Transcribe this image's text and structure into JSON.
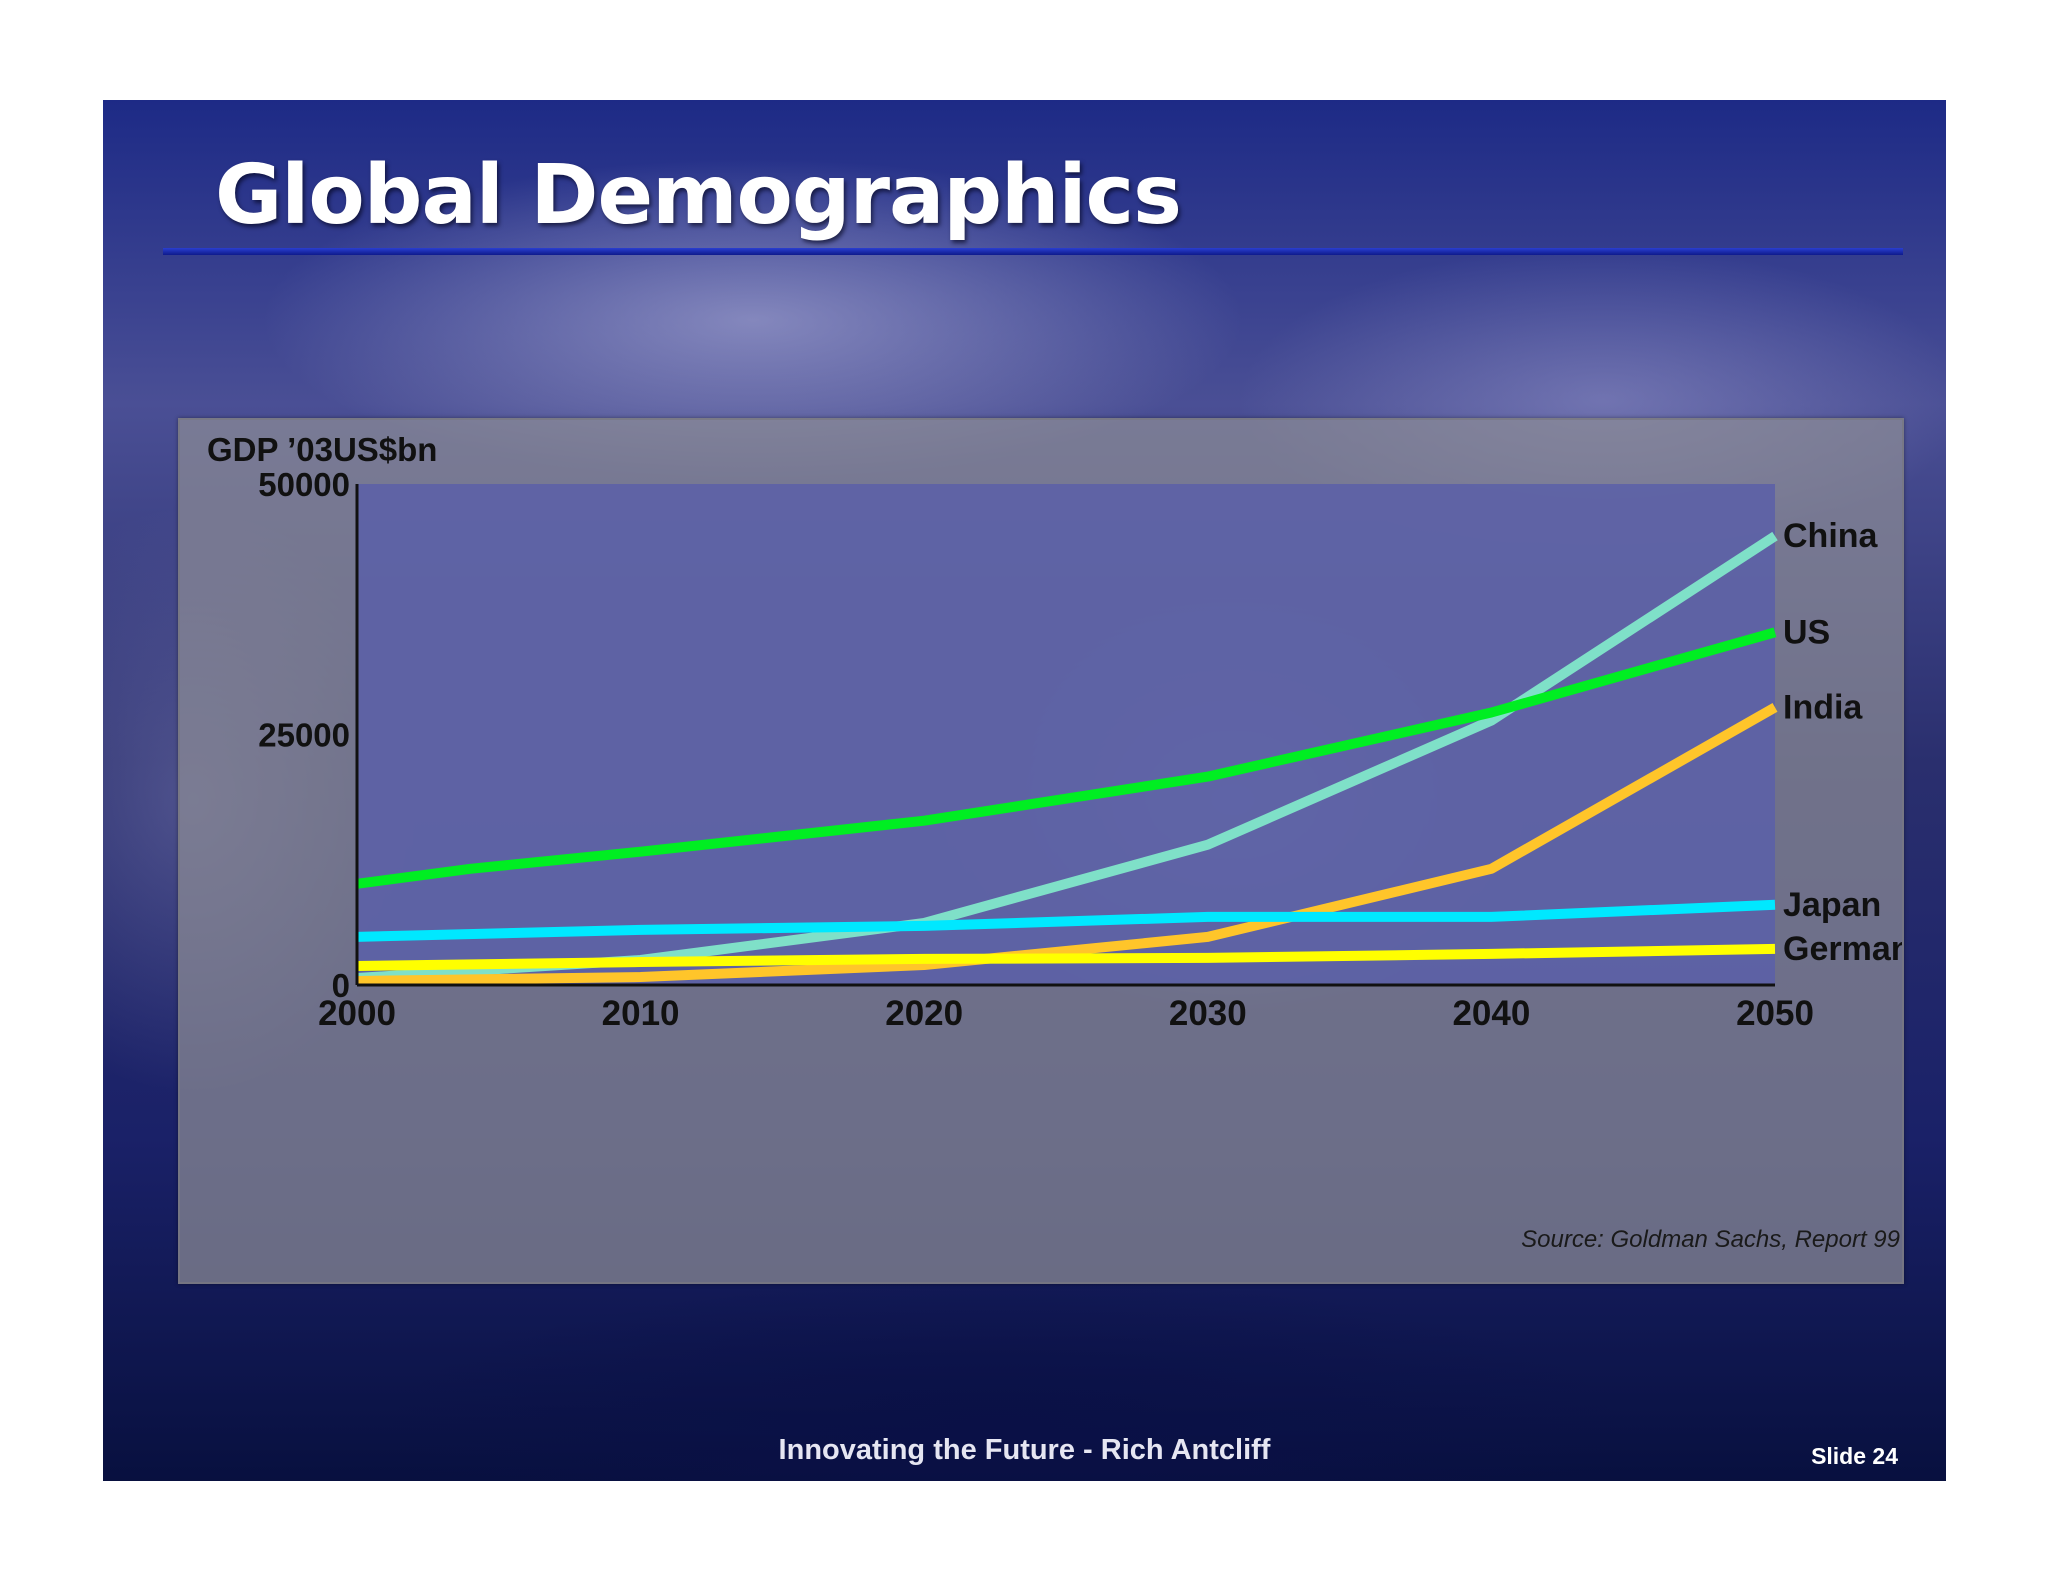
{
  "slide": {
    "title": "Global Demographics",
    "footer": "Innovating the Future - Rich Antcliff",
    "slide_number": "Slide 24",
    "source": "Source: Goldman Sachs, Report 99"
  },
  "chart_data": {
    "type": "line",
    "title": "",
    "ylabel": "GDP ’03US$bn",
    "xlabel": "",
    "ylim": [
      0,
      50000
    ],
    "xlim": [
      2000,
      2050
    ],
    "y_ticks": [
      0,
      25000,
      50000
    ],
    "x_ticks": [
      2000,
      2010,
      2020,
      2030,
      2040,
      2050
    ],
    "grid": false,
    "legend": "labels at line ends (right)",
    "series": [
      {
        "name": "China",
        "color": "#7fe0c8",
        "x": [
          2000,
          2010,
          2020,
          2030,
          2040,
          2050
        ],
        "values": [
          700,
          2500,
          6200,
          14000,
          26400,
          44800
        ]
      },
      {
        "name": "US",
        "color": "#00ee22",
        "x": [
          2000,
          2004,
          2010,
          2020,
          2030,
          2040,
          2050
        ],
        "values": [
          10100,
          11600,
          13300,
          16400,
          20800,
          27200,
          35200
        ]
      },
      {
        "name": "India",
        "color": "#ffc52a",
        "x": [
          2000,
          2010,
          2020,
          2030,
          2040,
          2050
        ],
        "values": [
          400,
          800,
          2000,
          4800,
          11600,
          27700
        ]
      },
      {
        "name": "Japan",
        "color": "#00e8ff",
        "x": [
          2000,
          2010,
          2020,
          2030,
          2040,
          2050
        ],
        "values": [
          4800,
          5500,
          5900,
          6800,
          6800,
          8000
        ]
      },
      {
        "name": "Germany",
        "color": "#ffff00",
        "x": [
          2000,
          2010,
          2020,
          2030,
          2040,
          2050
        ],
        "values": [
          1900,
          2300,
          2600,
          2700,
          3100,
          3600
        ]
      }
    ]
  }
}
